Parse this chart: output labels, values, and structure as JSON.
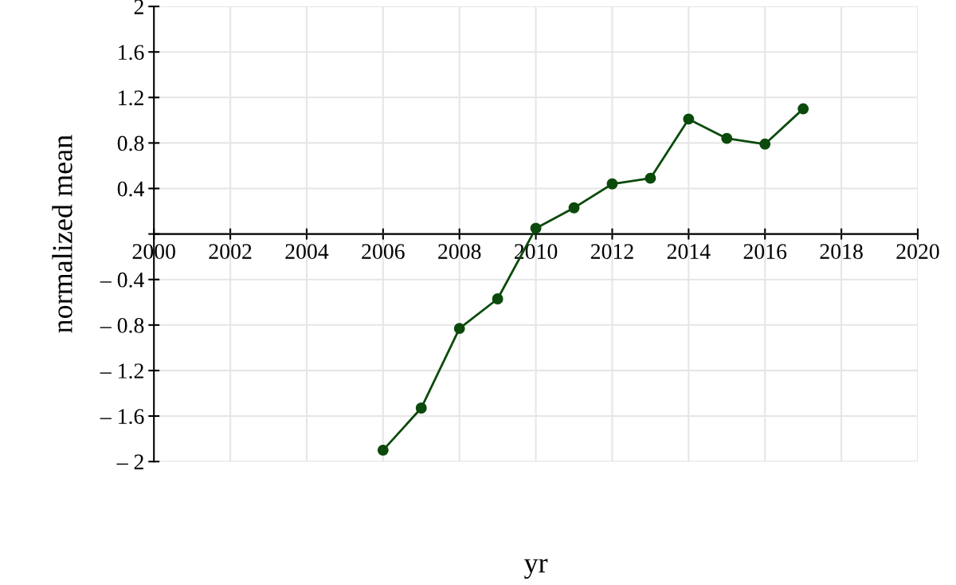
{
  "chart_data": {
    "type": "line",
    "xlabel": "yr",
    "ylabel": "normalized mean",
    "x": [
      2006,
      2007,
      2008,
      2009,
      2010,
      2011,
      2012,
      2013,
      2014,
      2015,
      2016,
      2017
    ],
    "series": [
      {
        "color": "#0b4a0b",
        "values": [
          -1.9,
          -1.53,
          -0.83,
          -0.57,
          0.05,
          0.23,
          0.44,
          0.49,
          1.01,
          0.84,
          0.79,
          1.1
        ]
      }
    ],
    "xlim": [
      2000,
      2020
    ],
    "xticks": [
      2000,
      2002,
      2004,
      2006,
      2008,
      2010,
      2012,
      2014,
      2016,
      2018,
      2020
    ],
    "ylim": [
      -2,
      2
    ],
    "yticks": [
      {
        "value": -2,
        "label": "– 2"
      },
      {
        "value": -1.6,
        "label": "– 1.6"
      },
      {
        "value": -1.2,
        "label": "– 1.2"
      },
      {
        "value": -0.8,
        "label": "– 0.8"
      },
      {
        "value": -0.4,
        "label": "– 0.4"
      },
      {
        "value": 0,
        "label": null
      },
      0.4,
      0.8,
      1.2,
      1.6,
      2
    ],
    "grid": true,
    "marker": "circle",
    "line_style": "solid",
    "legend": false
  }
}
